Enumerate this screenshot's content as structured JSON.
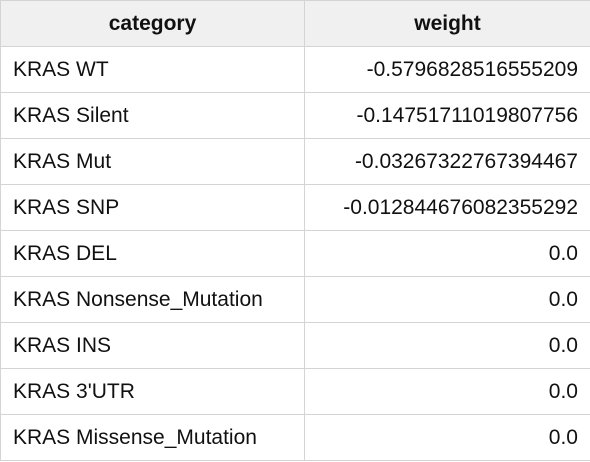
{
  "table": {
    "headers": [
      "category",
      "weight"
    ],
    "rows": [
      {
        "category": "KRAS WT",
        "weight": "-0.5796828516555209"
      },
      {
        "category": "KRAS Silent",
        "weight": "-0.14751711019807756"
      },
      {
        "category": "KRAS Mut",
        "weight": "-0.03267322767394467"
      },
      {
        "category": "KRAS SNP",
        "weight": "-0.012844676082355292"
      },
      {
        "category": "KRAS DEL",
        "weight": "0.0"
      },
      {
        "category": "KRAS Nonsense_Mutation",
        "weight": "0.0"
      },
      {
        "category": "KRAS INS",
        "weight": "0.0"
      },
      {
        "category": "KRAS 3'UTR",
        "weight": "0.0"
      },
      {
        "category": "KRAS Missense_Mutation",
        "weight": "0.0"
      }
    ]
  }
}
